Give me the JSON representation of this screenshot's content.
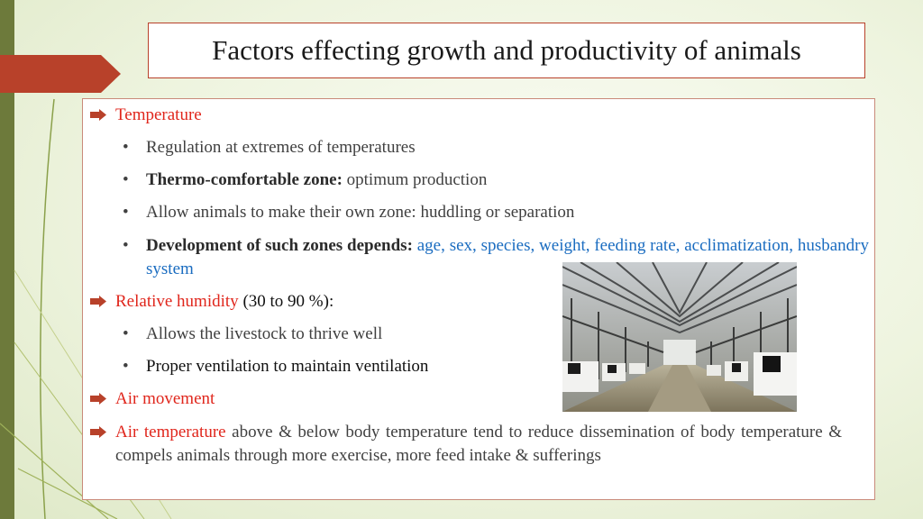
{
  "title": "Factors effecting growth and productivity of animals",
  "colors": {
    "accent_red": "#e0261c",
    "accent_blue": "#1a6cc0",
    "bar_olive": "#6d7a3b",
    "arrow_rust": "#b8412a"
  },
  "temperature": {
    "heading": "Temperature",
    "item1": "Regulation at extremes of temperatures",
    "item2_bold": "Thermo-comfortable zone:",
    "item2_rest": " optimum production",
    "item3": "Allow animals to make their own zone: huddling or separation",
    "item4_bold": "Development of such zones depends:",
    "item4_rest": " age, sex, species, weight, feeding rate, acclimatization, husbandry system"
  },
  "humidity": {
    "heading": "Relative humidity",
    "range": " (30 to 90 %):",
    "item1": "Allows the livestock to thrive well",
    "item2": "Proper ventilation to maintain ventilation"
  },
  "air_movement": {
    "heading": "Air movement"
  },
  "air_temperature": {
    "heading": "Air temperature",
    "text": " above & below body temperature tend to reduce dissemination of body temperature & compels animals through more exercise, more feed intake & sufferings"
  },
  "image": {
    "subject": "cows-in-barn-photo"
  }
}
